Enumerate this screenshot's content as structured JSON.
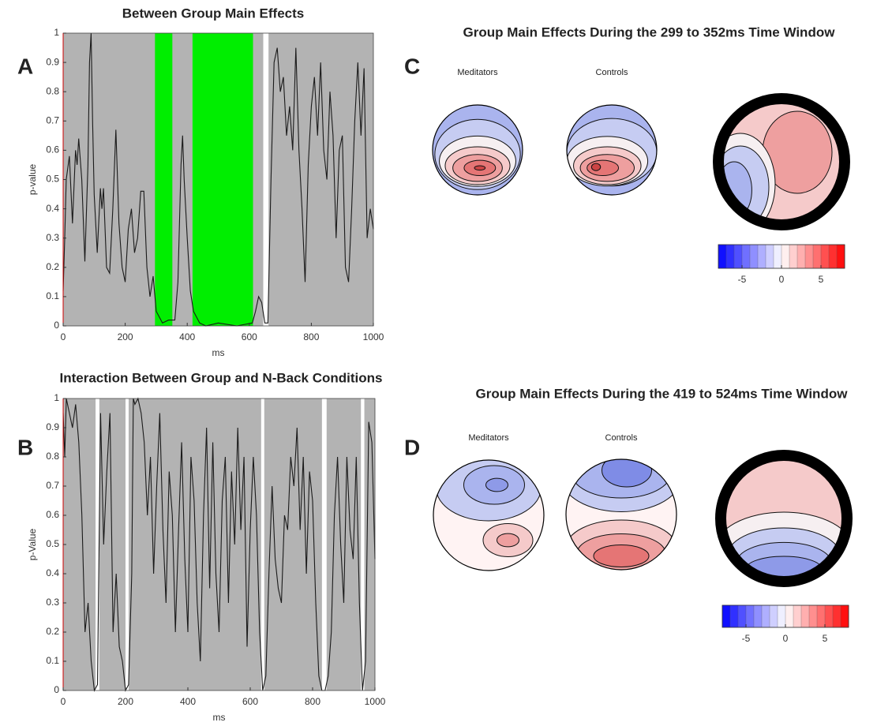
{
  "chart_data": [
    {
      "type": "line",
      "panel": "A",
      "title": "Between Group Main Effects",
      "xlabel": "ms",
      "ylabel": "p-value",
      "background": "#b3b3b3",
      "color": "#1a1a1a",
      "xlim": [
        0,
        1000
      ],
      "ylim": [
        0,
        1
      ],
      "xticks": [
        0,
        200,
        400,
        600,
        800,
        1000
      ],
      "yticks": [
        0,
        0.1,
        0.2,
        0.3,
        0.4,
        0.5,
        0.6,
        0.7,
        0.8,
        0.9,
        1
      ],
      "spans": [
        {
          "start": 296,
          "end": 352,
          "color": "#00ee00"
        },
        {
          "start": 417,
          "end": 612,
          "color": "#00ee00"
        },
        {
          "start": 645,
          "end": 662,
          "color": "#ffffff"
        }
      ],
      "x": [
        0,
        5,
        10,
        20,
        30,
        40,
        45,
        50,
        60,
        70,
        80,
        85,
        90,
        95,
        100,
        110,
        120,
        125,
        130,
        140,
        150,
        160,
        170,
        180,
        190,
        200,
        210,
        220,
        230,
        240,
        250,
        260,
        270,
        280,
        290,
        300,
        320,
        340,
        360,
        370,
        380,
        385,
        390,
        400,
        410,
        420,
        440,
        460,
        500,
        560,
        610,
        620,
        630,
        640,
        650,
        660,
        670,
        680,
        690,
        700,
        710,
        720,
        730,
        740,
        750,
        760,
        770,
        780,
        790,
        800,
        810,
        820,
        830,
        840,
        850,
        860,
        870,
        880,
        890,
        900,
        910,
        920,
        930,
        940,
        950,
        960,
        970,
        980,
        990,
        1000
      ],
      "values": [
        0.12,
        0.3,
        0.5,
        0.58,
        0.35,
        0.6,
        0.55,
        0.64,
        0.5,
        0.22,
        0.55,
        0.9,
        1.0,
        0.7,
        0.45,
        0.25,
        0.47,
        0.4,
        0.47,
        0.2,
        0.18,
        0.4,
        0.67,
        0.35,
        0.2,
        0.15,
        0.33,
        0.4,
        0.25,
        0.3,
        0.46,
        0.46,
        0.2,
        0.1,
        0.17,
        0.05,
        0.01,
        0.02,
        0.02,
        0.15,
        0.55,
        0.65,
        0.5,
        0.3,
        0.12,
        0.05,
        0.01,
        0.0,
        0.01,
        0.0,
        0.01,
        0.05,
        0.1,
        0.08,
        0.01,
        0.01,
        0.5,
        0.9,
        0.95,
        0.8,
        0.85,
        0.65,
        0.75,
        0.6,
        0.95,
        0.6,
        0.4,
        0.15,
        0.55,
        0.75,
        0.85,
        0.65,
        0.9,
        0.6,
        0.5,
        0.8,
        0.65,
        0.3,
        0.6,
        0.65,
        0.2,
        0.15,
        0.4,
        0.7,
        0.9,
        0.65,
        0.88,
        0.3,
        0.4,
        0.33
      ]
    },
    {
      "type": "line",
      "panel": "B",
      "title": "Interaction Between Group and N-Back Conditions",
      "xlabel": "ms",
      "ylabel": "p-Value",
      "background": "#b3b3b3",
      "color": "#1a1a1a",
      "xlim": [
        0,
        1000
      ],
      "ylim": [
        0,
        1
      ],
      "xticks": [
        0,
        200,
        400,
        600,
        800,
        1000
      ],
      "yticks": [
        0,
        0.1,
        0.2,
        0.3,
        0.4,
        0.5,
        0.6,
        0.7,
        0.8,
        0.9,
        1
      ],
      "spans": [
        {
          "start": 104,
          "end": 116,
          "color": "#ffffff"
        },
        {
          "start": 200,
          "end": 210,
          "color": "#ffffff"
        },
        {
          "start": 635,
          "end": 645,
          "color": "#ffffff"
        },
        {
          "start": 830,
          "end": 845,
          "color": "#ffffff"
        },
        {
          "start": 955,
          "end": 966,
          "color": "#ffffff"
        }
      ],
      "x": [
        0,
        5,
        10,
        20,
        30,
        40,
        50,
        60,
        70,
        80,
        90,
        100,
        110,
        120,
        130,
        140,
        150,
        160,
        170,
        180,
        190,
        200,
        210,
        220,
        225,
        230,
        240,
        250,
        260,
        270,
        280,
        290,
        300,
        310,
        320,
        330,
        340,
        350,
        360,
        370,
        380,
        390,
        400,
        410,
        420,
        430,
        440,
        450,
        460,
        470,
        480,
        490,
        500,
        510,
        520,
        530,
        540,
        550,
        560,
        570,
        580,
        590,
        600,
        610,
        620,
        630,
        640,
        650,
        660,
        670,
        680,
        690,
        700,
        710,
        720,
        730,
        740,
        750,
        760,
        770,
        780,
        790,
        800,
        810,
        820,
        830,
        840,
        850,
        860,
        870,
        880,
        890,
        900,
        910,
        920,
        930,
        940,
        950,
        960,
        970,
        980,
        990,
        1000
      ],
      "values": [
        0.95,
        0.8,
        1.0,
        0.95,
        0.9,
        0.98,
        0.85,
        0.6,
        0.2,
        0.3,
        0.1,
        0.0,
        0.02,
        0.95,
        0.5,
        0.75,
        0.95,
        0.2,
        0.4,
        0.15,
        0.1,
        0.0,
        0.02,
        0.4,
        1.0,
        0.98,
        1.0,
        0.95,
        0.85,
        0.6,
        0.8,
        0.4,
        0.7,
        0.95,
        0.55,
        0.3,
        0.75,
        0.6,
        0.2,
        0.55,
        0.85,
        0.45,
        0.2,
        0.8,
        0.65,
        0.3,
        0.1,
        0.6,
        0.9,
        0.35,
        0.85,
        0.4,
        0.2,
        0.65,
        0.8,
        0.3,
        0.75,
        0.5,
        0.9,
        0.55,
        0.8,
        0.15,
        0.55,
        0.8,
        0.6,
        0.2,
        0.0,
        0.05,
        0.4,
        0.7,
        0.45,
        0.35,
        0.3,
        0.6,
        0.55,
        0.8,
        0.7,
        0.9,
        0.55,
        0.8,
        0.4,
        0.75,
        0.65,
        0.3,
        0.05,
        0.0,
        0.0,
        0.05,
        0.2,
        0.6,
        0.8,
        0.5,
        0.3,
        0.8,
        0.55,
        0.45,
        0.8,
        0.3,
        0.0,
        0.1,
        0.92,
        0.85,
        0.45
      ]
    }
  ],
  "topomaps": [
    {
      "panel": "C",
      "title": "Group Main Effects During the 299 to 352ms Time Window",
      "heads": [
        "Meditators",
        "Controls"
      ],
      "colorbar": {
        "lim": [
          -8,
          8
        ],
        "ticks": [
          -5,
          0,
          5
        ]
      }
    },
    {
      "panel": "D",
      "title": "Group Main Effects During the 419 to 524ms Time Window",
      "heads": [
        "Meditators",
        "Controls"
      ],
      "colorbar": {
        "lim": [
          -8,
          8
        ],
        "ticks": [
          -5,
          0,
          5
        ]
      }
    }
  ]
}
